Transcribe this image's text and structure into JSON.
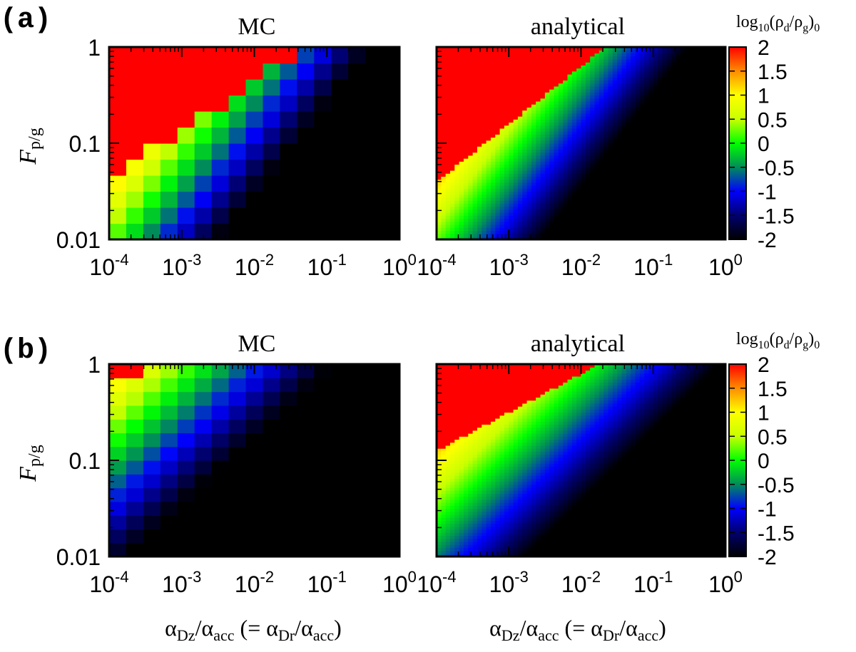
{
  "figure": {
    "rows": [
      {
        "label": "(a)",
        "colorbar_title": "log10(ρd/ρg)0"
      },
      {
        "label": "(b)",
        "colorbar_title": "log10(ρd/ρg)0"
      }
    ],
    "colorbar": {
      "ticks": [
        "2",
        "1.5",
        "1",
        "0.5",
        "0",
        "-0.5",
        "-1",
        "-1.5",
        "-2"
      ],
      "title_parts": {
        "log": "log",
        "log_sub": "10",
        "open": "(ρ",
        "d": "d",
        "slash": "/ρ",
        "g": "g",
        "close": ")",
        "zero": "0"
      }
    },
    "xlabel_parts": {
      "a1": "α",
      "s1": "Dz",
      "a2": "/α",
      "s2": "acc",
      "a3": " (= α",
      "s3": "Dr",
      "a4": "/α",
      "s4": "acc",
      "a5": ")"
    },
    "ylabel_parts": {
      "f": "F",
      "sub": "p/g"
    }
  },
  "chart_data": [
    {
      "type": "heatmap",
      "panel": "a-MC",
      "title": "MC",
      "x_scale": "log",
      "y_scale": "log",
      "xlim": [
        0.0001,
        1
      ],
      "ylim": [
        0.01,
        1
      ],
      "zlim": [
        -2,
        2
      ],
      "x_ticks": [
        {
          "base": "10",
          "exp": "-4"
        },
        {
          "base": "10",
          "exp": "-3"
        },
        {
          "base": "10",
          "exp": "-2"
        },
        {
          "base": "10",
          "exp": "-1"
        },
        {
          "base": "10",
          "exp": "0"
        }
      ],
      "y_ticks": [
        "1",
        "0.1",
        "0.01"
      ],
      "grid": {
        "nx": 17,
        "ny": 12,
        "boundary_log_y_at_x0": -1.35,
        "slope": 0.5,
        "falloff_per_decade": 1.3,
        "offset": -0.2
      }
    },
    {
      "type": "heatmap",
      "panel": "a-analytical",
      "title": "analytical",
      "x_scale": "log",
      "y_scale": "log",
      "xlim": [
        0.0001,
        1
      ],
      "ylim": [
        0.01,
        1
      ],
      "zlim": [
        -2,
        2
      ],
      "x_ticks": [
        {
          "base": "10",
          "exp": "-4"
        },
        {
          "base": "10",
          "exp": "-3"
        },
        {
          "base": "10",
          "exp": "-2"
        },
        {
          "base": "10",
          "exp": "-1"
        },
        {
          "base": "10",
          "exp": "0"
        }
      ],
      "y_ticks": [
        "1",
        "0.1",
        "0.01"
      ],
      "grid": {
        "nx": 64,
        "ny": 64,
        "boundary_log_y_at_x0": -1.4,
        "slope": 0.6,
        "falloff_per_decade": 1.1,
        "offset": -0.3
      }
    },
    {
      "type": "heatmap",
      "panel": "b-MC",
      "title": "MC",
      "x_scale": "log",
      "y_scale": "log",
      "xlim": [
        0.0001,
        1
      ],
      "ylim": [
        0.01,
        1
      ],
      "zlim": [
        -2,
        2
      ],
      "x_ticks": [
        {
          "base": "10",
          "exp": "-4"
        },
        {
          "base": "10",
          "exp": "-3"
        },
        {
          "base": "10",
          "exp": "-2"
        },
        {
          "base": "10",
          "exp": "-1"
        },
        {
          "base": "10",
          "exp": "0"
        }
      ],
      "y_ticks": [
        "1",
        "0.1",
        "0.01"
      ],
      "grid": {
        "nx": 17,
        "ny": 14,
        "boundary_log_y_at_x0": -0.2,
        "slope": 0.35,
        "falloff_per_decade": 1.0,
        "offset": -0.4
      }
    },
    {
      "type": "heatmap",
      "panel": "b-analytical",
      "title": "analytical",
      "x_scale": "log",
      "y_scale": "log",
      "xlim": [
        0.0001,
        1
      ],
      "ylim": [
        0.01,
        1
      ],
      "zlim": [
        -2,
        2
      ],
      "x_ticks": [
        {
          "base": "10",
          "exp": "-4"
        },
        {
          "base": "10",
          "exp": "-3"
        },
        {
          "base": "10",
          "exp": "-2"
        },
        {
          "base": "10",
          "exp": "-1"
        },
        {
          "base": "10",
          "exp": "0"
        }
      ],
      "y_ticks": [
        "1",
        "0.1",
        "0.01"
      ],
      "grid": {
        "nx": 64,
        "ny": 64,
        "boundary_log_y_at_x0": -0.9,
        "slope": 0.4,
        "falloff_per_decade": 1.0,
        "offset": -0.3
      }
    }
  ],
  "colormap_stops": [
    {
      "v": -2,
      "c": "#000000"
    },
    {
      "v": -1.5,
      "c": "#00006e"
    },
    {
      "v": -1,
      "c": "#0000ff"
    },
    {
      "v": -0.5,
      "c": "#008c5a"
    },
    {
      "v": 0,
      "c": "#00ff00"
    },
    {
      "v": 0.5,
      "c": "#c8ff00"
    },
    {
      "v": 1,
      "c": "#ffff00"
    },
    {
      "v": 1.5,
      "c": "#ff8c00"
    },
    {
      "v": 2,
      "c": "#ff0000"
    }
  ]
}
